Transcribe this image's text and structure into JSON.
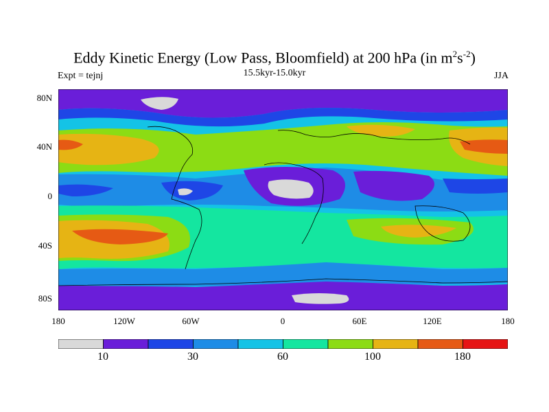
{
  "title": {
    "prefix": "Eddy Kinetic Energy (Low Pass, Bloomfield) at 200 hPa (in m",
    "sup1": "2",
    "mid": "s",
    "sup2": "-2",
    "suffix": ")"
  },
  "subtitle": "15.5kyr-15.0kyr",
  "experiment": "Expt = tejnj",
  "season": "JJA",
  "lat_labels": [
    "80N",
    "40N",
    "0",
    "40S",
    "80S"
  ],
  "lon_labels": [
    "180",
    "120W",
    "60W",
    "0",
    "60E",
    "120E",
    "180"
  ],
  "colorbar": {
    "colors": [
      "#d9d9d9",
      "#6a1ed9",
      "#1e46e6",
      "#1e8ce6",
      "#14c3e6",
      "#14e6a0",
      "#8cdc14",
      "#e6b414",
      "#e65a14",
      "#e61414"
    ],
    "labels": [
      "10",
      "30",
      "60",
      "100",
      "180"
    ]
  }
}
